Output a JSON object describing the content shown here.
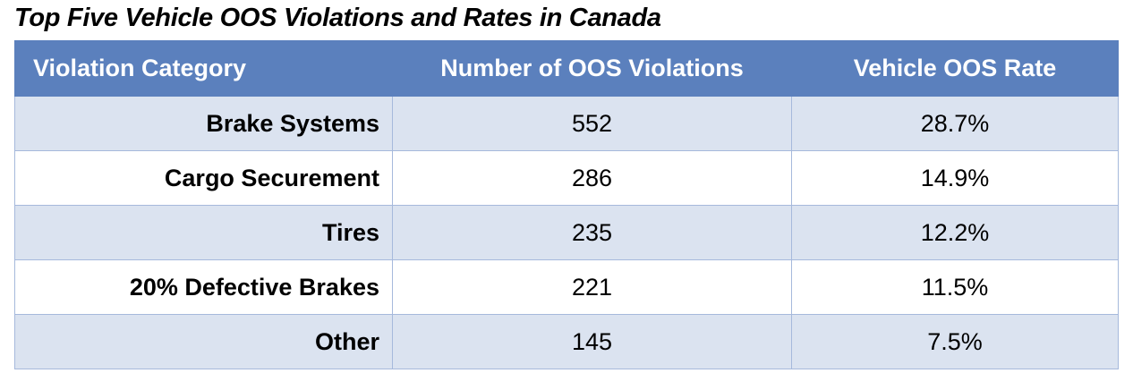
{
  "title": "Top Five Vehicle OOS Violations and Rates in Canada",
  "colors": {
    "header_bg": "#5b80bd",
    "header_text": "#ffffff",
    "band_row_bg": "#dbe3f0",
    "plain_row_bg": "#ffffff",
    "border": "#a6b9dc"
  },
  "table": {
    "headers": [
      "Violation Category",
      "Number of OOS Violations",
      "Vehicle OOS Rate"
    ],
    "rows": [
      [
        "Brake Systems",
        "552",
        "28.7%"
      ],
      [
        "Cargo Securement",
        "286",
        "14.9%"
      ],
      [
        "Tires",
        "235",
        "12.2%"
      ],
      [
        "20% Defective Brakes",
        "221",
        "11.5%"
      ],
      [
        "Other",
        "145",
        "7.5%"
      ]
    ]
  }
}
